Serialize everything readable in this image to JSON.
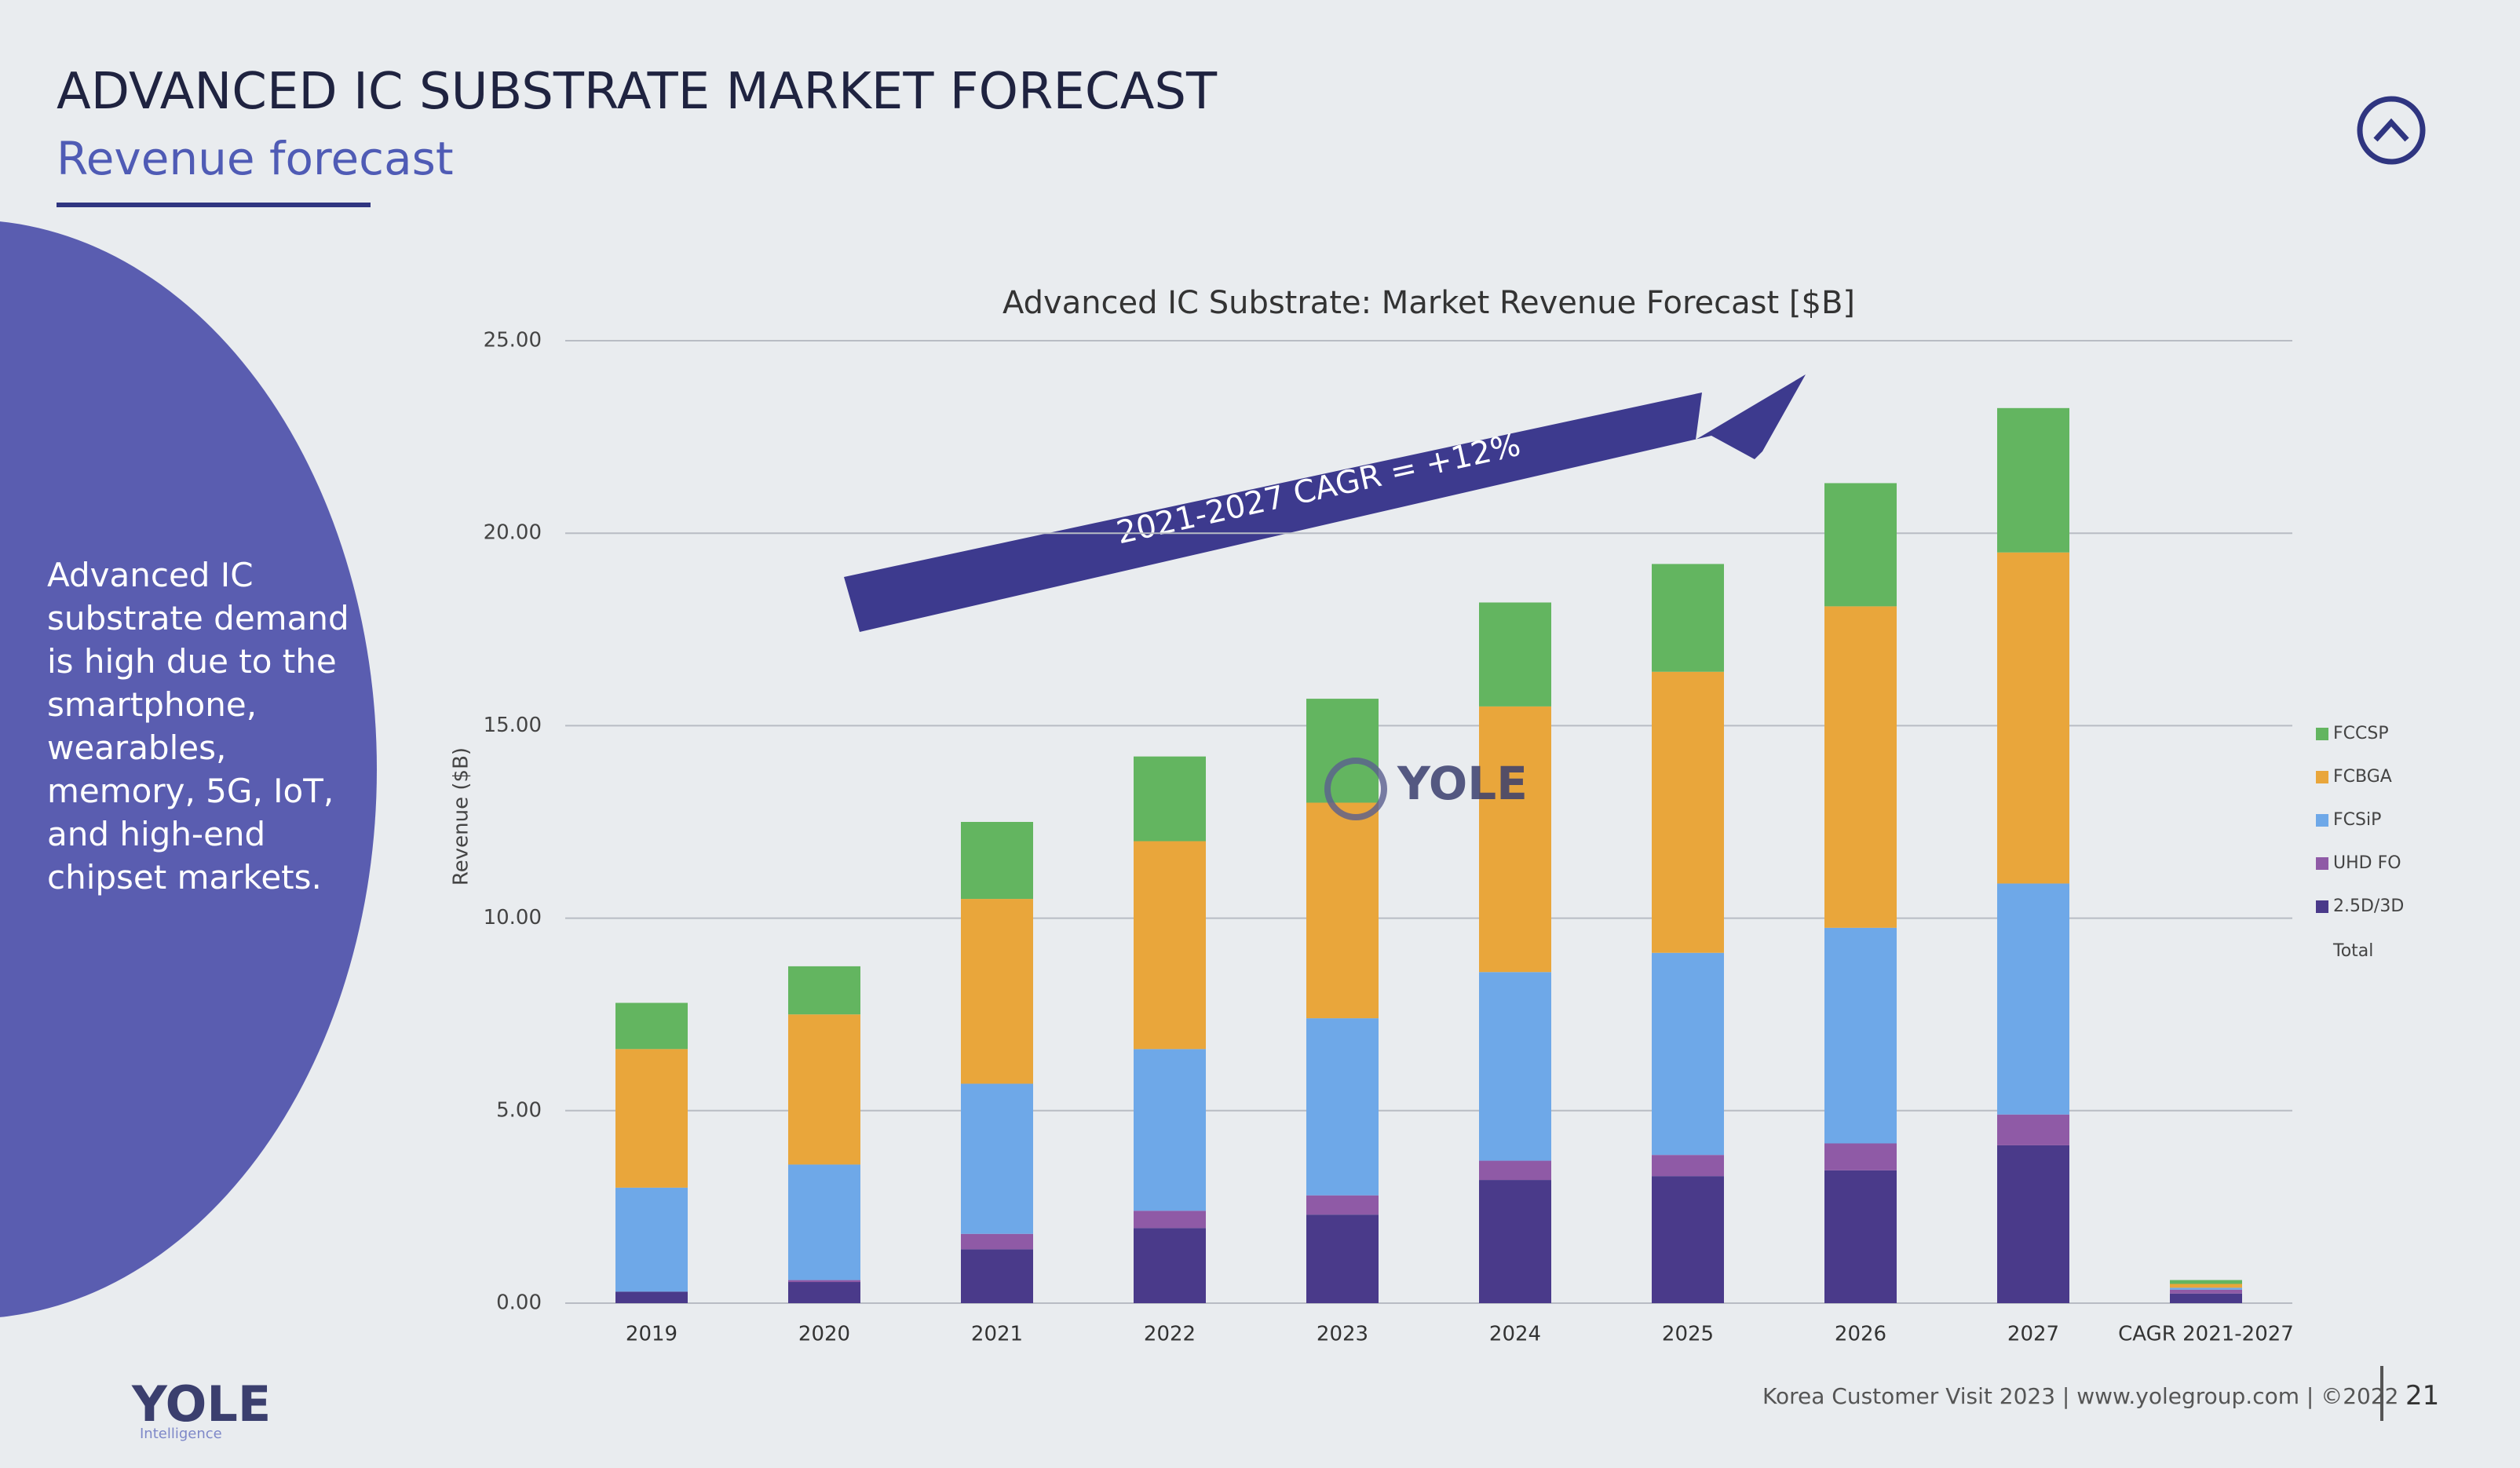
{
  "header": {
    "title": "ADVANCED IC SUBSTRATE MARKET FORECAST",
    "subtitle": "Revenue forecast"
  },
  "side_text": "Advanced IC substrate demand is high due to the smartphone, wearables, memory, 5G, IoT, and high-end chipset markets.",
  "footer": {
    "logo": "YOLE",
    "logo_sub": "Intelligence",
    "text": "Korea Customer Visit 2023 | www.yolegroup.com | ©2022",
    "page": "21"
  },
  "chart_data": {
    "type": "bar",
    "stacked": true,
    "grid": true,
    "legend": "right",
    "title": "Advanced IC Substrate: Market Revenue Forecast [$B]",
    "y_label": "Revenue ($B)",
    "annotation": "2021-2027 CAGR = +12%",
    "watermark": "YOLE",
    "total_label": "Total",
    "categories": [
      "2019",
      "2020",
      "2021",
      "2022",
      "2023",
      "2024",
      "2025",
      "2026",
      "2027",
      "CAGR 2021-2027"
    ],
    "series": [
      {
        "name": "2.5D/3D",
        "color": "#4a3a8a",
        "values": [
          0.3,
          0.55,
          1.4,
          1.95,
          2.3,
          3.2,
          3.3,
          3.45,
          4.1,
          0.25
        ]
      },
      {
        "name": "UHD FO",
        "color": "#8f5aa6",
        "values": [
          0,
          0.05,
          0.4,
          0.45,
          0.5,
          0.5,
          0.55,
          0.7,
          0.8,
          0.1
        ]
      },
      {
        "name": "FCSiP",
        "color": "#6ea8e8",
        "values": [
          2.7,
          3.0,
          3.9,
          4.2,
          4.6,
          4.9,
          5.25,
          5.6,
          6.0,
          0.05
        ]
      },
      {
        "name": "FCBGA",
        "color": "#e9a63b",
        "values": [
          3.6,
          3.9,
          4.8,
          5.4,
          5.6,
          6.9,
          7.3,
          8.35,
          8.6,
          0.1
        ]
      },
      {
        "name": "FCCSP",
        "color": "#63b560",
        "values": [
          1.2,
          1.25,
          2.0,
          2.2,
          2.7,
          2.7,
          2.8,
          3.2,
          3.75,
          0.1
        ]
      }
    ],
    "ylim": [
      0,
      25
    ],
    "yticks": [
      {
        "value": 0,
        "label": "0.00"
      },
      {
        "value": 5,
        "label": "5.00"
      },
      {
        "value": 10,
        "label": "10.00"
      },
      {
        "value": 15,
        "label": "15.00"
      },
      {
        "value": 20,
        "label": "20.00"
      },
      {
        "value": 25,
        "label": "25.00"
      }
    ]
  }
}
